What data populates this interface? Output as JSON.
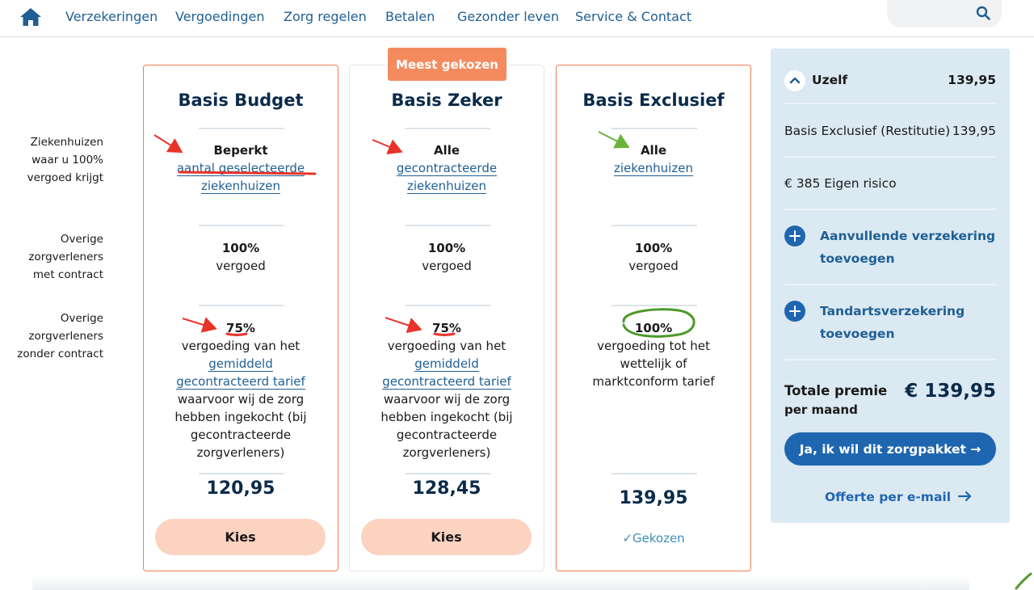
{
  "nav": {
    "items": [
      "Verzekeringen",
      "Vergoedingen",
      "Zorg regelen",
      "Betalen",
      "Gezonder leven",
      "Service & Contact"
    ]
  },
  "row_labels": [
    "Ziekenhuizen waar u 100% vergoed krijgt",
    "Overige zorgverleners met contract",
    "Overige zorgverleners zonder contract"
  ],
  "badge": "Meest gekozen",
  "plans": [
    {
      "title": "Basis Budget",
      "hospital_strong": "Beperkt",
      "hospital_link": [
        "aantal geselecteerde",
        "ziekenhuizen"
      ],
      "contract_pct": "100%",
      "contract_text": "vergoed",
      "no_contract_pct": "75%",
      "no_contract_text": "vergoeding van het",
      "no_contract_link": [
        "gemiddeld",
        "gecontracteerd tarief"
      ],
      "no_contract_tail": [
        "waarvoor wij de zorg",
        "hebben ingekocht (bij",
        "gecontracteerde",
        "zorgverleners)"
      ],
      "price": "120,95",
      "button": "Kies"
    },
    {
      "title": "Basis Zeker",
      "hospital_strong": "Alle",
      "hospital_link": [
        "gecontracteerde",
        "ziekenhuizen"
      ],
      "contract_pct": "100%",
      "contract_text": "vergoed",
      "no_contract_pct": "75%",
      "no_contract_text": "vergoeding van het",
      "no_contract_link": [
        "gemiddeld",
        "gecontracteerd tarief"
      ],
      "no_contract_tail": [
        "waarvoor wij de zorg",
        "hebben ingekocht (bij",
        "gecontracteerde",
        "zorgverleners)"
      ],
      "price": "128,45",
      "button": "Kies"
    },
    {
      "title": "Basis Exclusief",
      "hospital_strong": "Alle",
      "hospital_link": [
        "ziekenhuizen"
      ],
      "contract_pct": "100%",
      "contract_text": "vergoed",
      "no_contract_pct": "100%",
      "no_contract_text": [
        "vergoeding tot het",
        "wettelijk of",
        "marktconform tarief"
      ],
      "price": "139,95",
      "chosen": "Gekozen"
    }
  ],
  "summary": {
    "section_title": "Uzelf",
    "section_total": "139,95",
    "plan_name": "Basis Exclusief (Restitutie)",
    "plan_price": "139,95",
    "deductible": "€ 385 Eigen risico",
    "addon1": [
      "Aanvullende verzekering",
      "toevoegen"
    ],
    "addon2": [
      "Tandartsverzekering",
      "toevoegen"
    ],
    "total_label": "Totale premie",
    "total_sub": "per maand",
    "total_value": "€ 139,95",
    "cta": "Ja, ik wil dit zorgpakket →",
    "offer": "Offerte per e-mail"
  },
  "colors": {
    "accent_blue": "#1f66b0",
    "link_blue": "#1f5f93",
    "badge_orange": "#f48b5f",
    "card_border_orange": "#ef7d52",
    "button_peach": "#fcd2c0",
    "panel_bg": "#dbe9f3",
    "annotation_red": "#e8332a",
    "annotation_green": "#6bb33c"
  }
}
